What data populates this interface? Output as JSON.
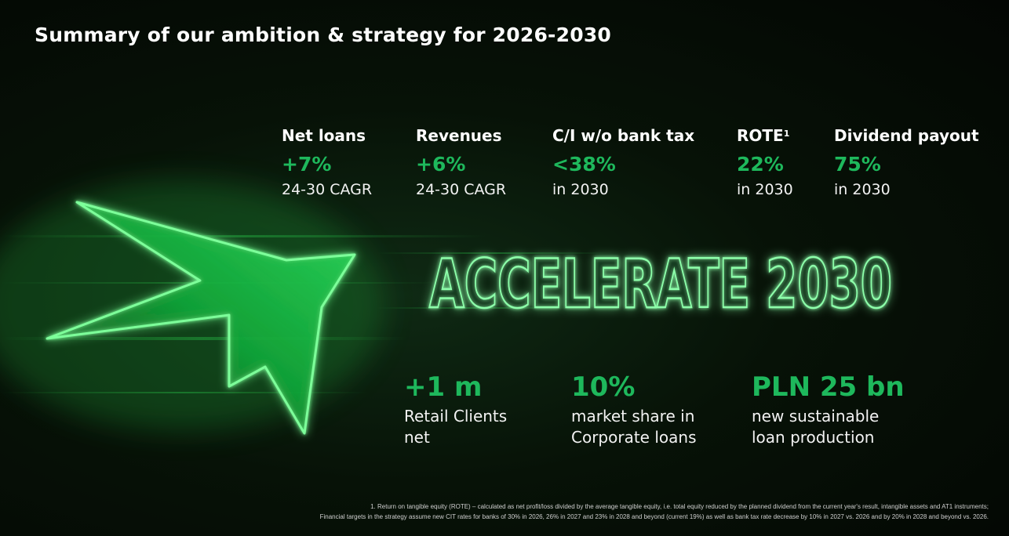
{
  "title": "Summary of our ambition & strategy for 2026-2030",
  "kpis": [
    {
      "label": "Net loans",
      "value": "+7%",
      "sub": "24-30 CAGR"
    },
    {
      "label": "Revenues",
      "value": "+6%",
      "sub": "24-30 CAGR"
    },
    {
      "label": "C/I w/o bank tax",
      "value": "<38%",
      "sub": "in 2030"
    },
    {
      "label": "ROTE",
      "label_sup": "1",
      "value": "22%",
      "sub": "in 2030"
    },
    {
      "label": "Dividend payout",
      "value": "75%",
      "sub": "in 2030"
    }
  ],
  "headline": "ACCELERATE 2030",
  "highlights": [
    {
      "value": "+1 m",
      "line1": "Retail Clients",
      "line2": "net"
    },
    {
      "value": "10%",
      "line1": "market share in",
      "line2": "Corporate loans"
    },
    {
      "value": "PLN 25 bn",
      "line1": "new sustainable",
      "line2": "loan production"
    }
  ],
  "footnote": {
    "line1": "1. Return on tangible equity (ROTE) – calculated as net profit/loss divided by the average tangible equity, i.e. total equity reduced by the planned dividend from the current year's result, intangible assets and AT1 instruments;",
    "line2": "Financial targets in the strategy assume new CIT rates for banks of 30% in 2026, 26% in 2027 and 23% in 2028 and beyond (current 19%) as well as bank tax rate decrease by 10% in 2027 vs. 2026 and by 20% in 2028 and beyond vs. 2026."
  },
  "colors": {
    "accent": "#1eb85c",
    "glow": "#39ff7a",
    "background": "#050b05"
  },
  "icons": [
    "star-logo-icon"
  ]
}
